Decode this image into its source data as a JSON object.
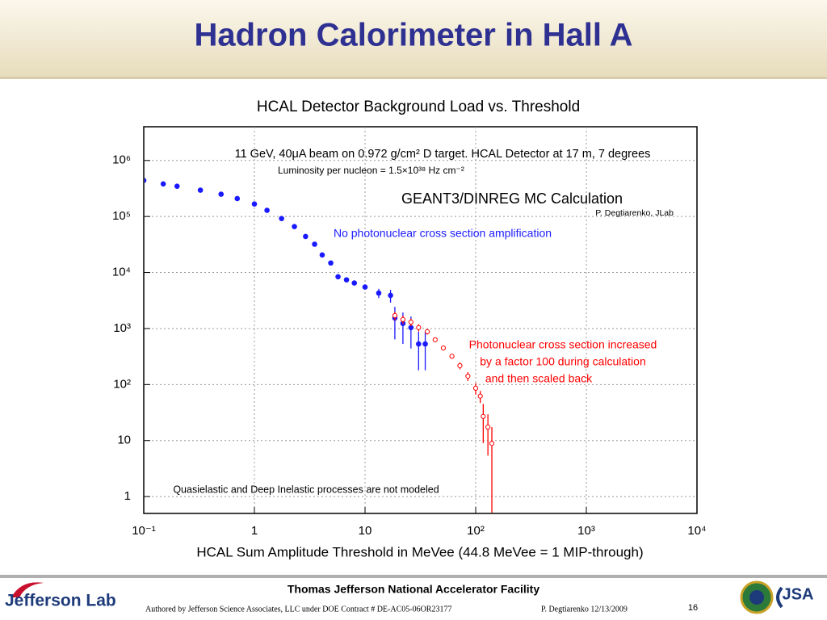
{
  "slide": {
    "title": "Hadron Calorimeter in Hall A",
    "footer": {
      "facility": "Thomas Jefferson National Accelerator Facility",
      "authored": "Authored by Jefferson Science Associates, LLC under DOE Contract #  DE-AC05-06OR23177",
      "author_date": "P. Degtiarenko 12/13/2009",
      "page": "16",
      "logo_left": "Jefferson Lab",
      "logo_right": "JSA"
    }
  },
  "chart_data": {
    "type": "scatter",
    "title": "HCAL Detector Background Load vs. Threshold",
    "x_label": "HCAL Sum Amplitude Threshold in MeVee (44.8 MeVee = 1 MIP-through)",
    "log_x": true,
    "log_y": true,
    "grid": true,
    "xlim": [
      0.1,
      10000
    ],
    "ylim": [
      0.5,
      4000000
    ],
    "xticks": [
      {
        "value": 0.1,
        "label": "10⁻¹"
      },
      1,
      10,
      {
        "value": 100,
        "label": "10²"
      },
      {
        "value": 1000,
        "label": "10³"
      },
      {
        "value": 10000,
        "label": "10⁴"
      }
    ],
    "yticks": [
      1,
      10,
      {
        "value": 100,
        "label": "10²"
      },
      {
        "value": 1000,
        "label": "10³"
      },
      {
        "value": 10000,
        "label": "10⁴"
      },
      {
        "value": 100000,
        "label": "10⁵"
      },
      {
        "value": 1000000,
        "label": "10⁶"
      }
    ],
    "annotations": [
      {
        "text": "11 GeV, 40μA beam on 0.972 g/cm² D target. HCAL Detector at 17 m, 7 degrees",
        "color": "#000000"
      },
      {
        "text": "Luminosity per nucleon =   1.5×10³⁸ Hz cm⁻²",
        "color": "#000000"
      },
      {
        "text": "GEANT3/DINREG MC Calculation",
        "color": "#000000"
      },
      {
        "text": "P. Degtiarenko, JLab",
        "color": "#000000"
      },
      {
        "text": "No photonuclear cross section amplification",
        "color": "#1a1aff"
      },
      {
        "text": "Photonuclear cross section increased",
        "color": "#ff0000"
      },
      {
        "text": "by a factor 100 during calculation",
        "color": "#ff0000"
      },
      {
        "text": "and then scaled back",
        "color": "#ff0000"
      },
      {
        "text": "Quasielastic and Deep Inelastic processes are not modeled",
        "color": "#000000"
      }
    ],
    "series": [
      {
        "color": "#1a1aff",
        "marker": "filled",
        "x": [
          0.1,
          0.15,
          0.2,
          0.325,
          0.5,
          0.7,
          1,
          1.3,
          1.76,
          2.3,
          2.9,
          3.5,
          4.1,
          4.9,
          5.7,
          6.8,
          8,
          10,
          13.3,
          17,
          18.6,
          22,
          26,
          30.5,
          35
        ],
        "values": [
          440000,
          382000,
          347000,
          295000,
          250000,
          209000,
          167000,
          129000,
          92000,
          66000,
          44000,
          32000,
          20600,
          14800,
          8400,
          7400,
          6500,
          5500,
          4300,
          3900,
          1540,
          1230,
          1040,
          530,
          530
        ],
        "errors": [
          null,
          null,
          null,
          null,
          null,
          null,
          null,
          null,
          null,
          null,
          null,
          null,
          null,
          null,
          null,
          null,
          null,
          null,
          800,
          1000,
          900,
          700,
          600,
          350,
          350
        ]
      },
      {
        "color": "#ff0000",
        "marker": "open",
        "x": [
          18.6,
          22,
          26,
          30.5,
          36.5,
          43,
          51,
          61,
          72,
          85,
          100,
          110,
          117,
          129,
          140
        ],
        "values": [
          1700,
          1450,
          1300,
          1040,
          880,
          630,
          450,
          320,
          217,
          141,
          86,
          62,
          27,
          17.4,
          8.9
        ],
        "errors": [
          300,
          250,
          200,
          150,
          100,
          60,
          40,
          30,
          30,
          25,
          20,
          15,
          18,
          12,
          8.5
        ]
      }
    ]
  }
}
